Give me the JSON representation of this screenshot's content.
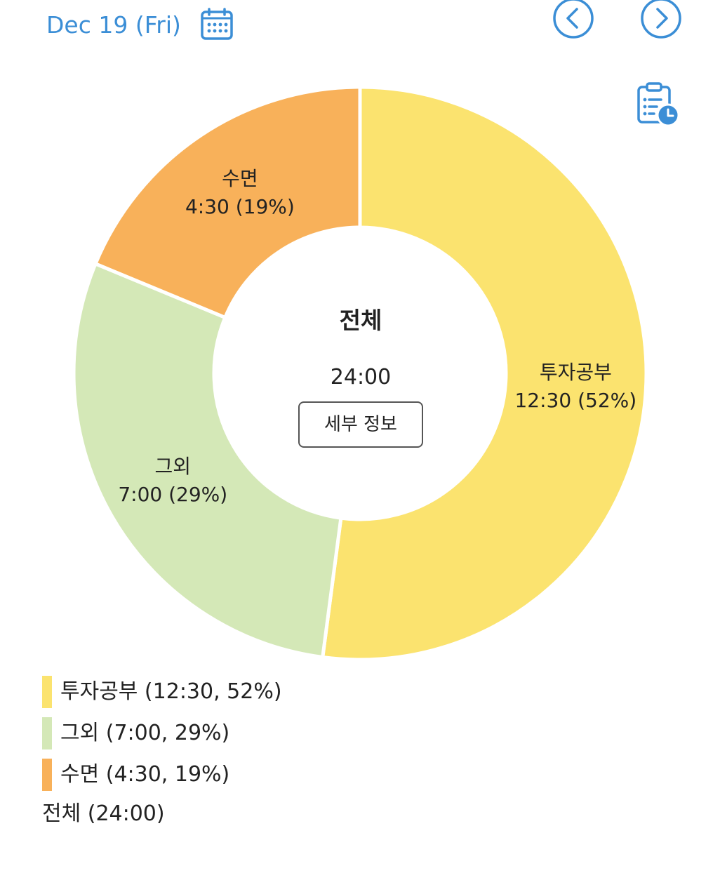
{
  "header": {
    "date": "Dec 19 (Fri)"
  },
  "colors": {
    "accent": "#3b8ed6",
    "segment_study": "#fbe36f",
    "segment_other": "#d4e8b7",
    "segment_sleep": "#f8b15a"
  },
  "icons": {
    "calendar": "calendar-icon",
    "prev": "chevron-left-icon",
    "next": "chevron-right-icon",
    "report": "clipboard-clock-icon"
  },
  "center": {
    "title": "전체",
    "total": "24:00",
    "detail_button": "세부 정보"
  },
  "chart_data": {
    "type": "pie",
    "donut": true,
    "series": [
      {
        "name": "투자공부",
        "time": "12:30",
        "percent": 52,
        "value": 12.5,
        "color": "#fbe36f",
        "label_time": "12:30 (52%)"
      },
      {
        "name": "그외",
        "time": "7:00",
        "percent": 29,
        "value": 7.0,
        "color": "#d4e8b7",
        "label_time": "7:00 (29%)"
      },
      {
        "name": "수면",
        "time": "4:30",
        "percent": 19,
        "value": 4.5,
        "color": "#f8b15a",
        "label_time": "4:30 (19%)"
      }
    ]
  },
  "legend": {
    "items": [
      {
        "text": "투자공부 (12:30, 52%)",
        "color": "#fbe36f"
      },
      {
        "text": "그외 (7:00, 29%)",
        "color": "#d4e8b7"
      },
      {
        "text": "수면 (4:30, 19%)",
        "color": "#f8b15a"
      }
    ],
    "total": "전체 (24:00)"
  }
}
